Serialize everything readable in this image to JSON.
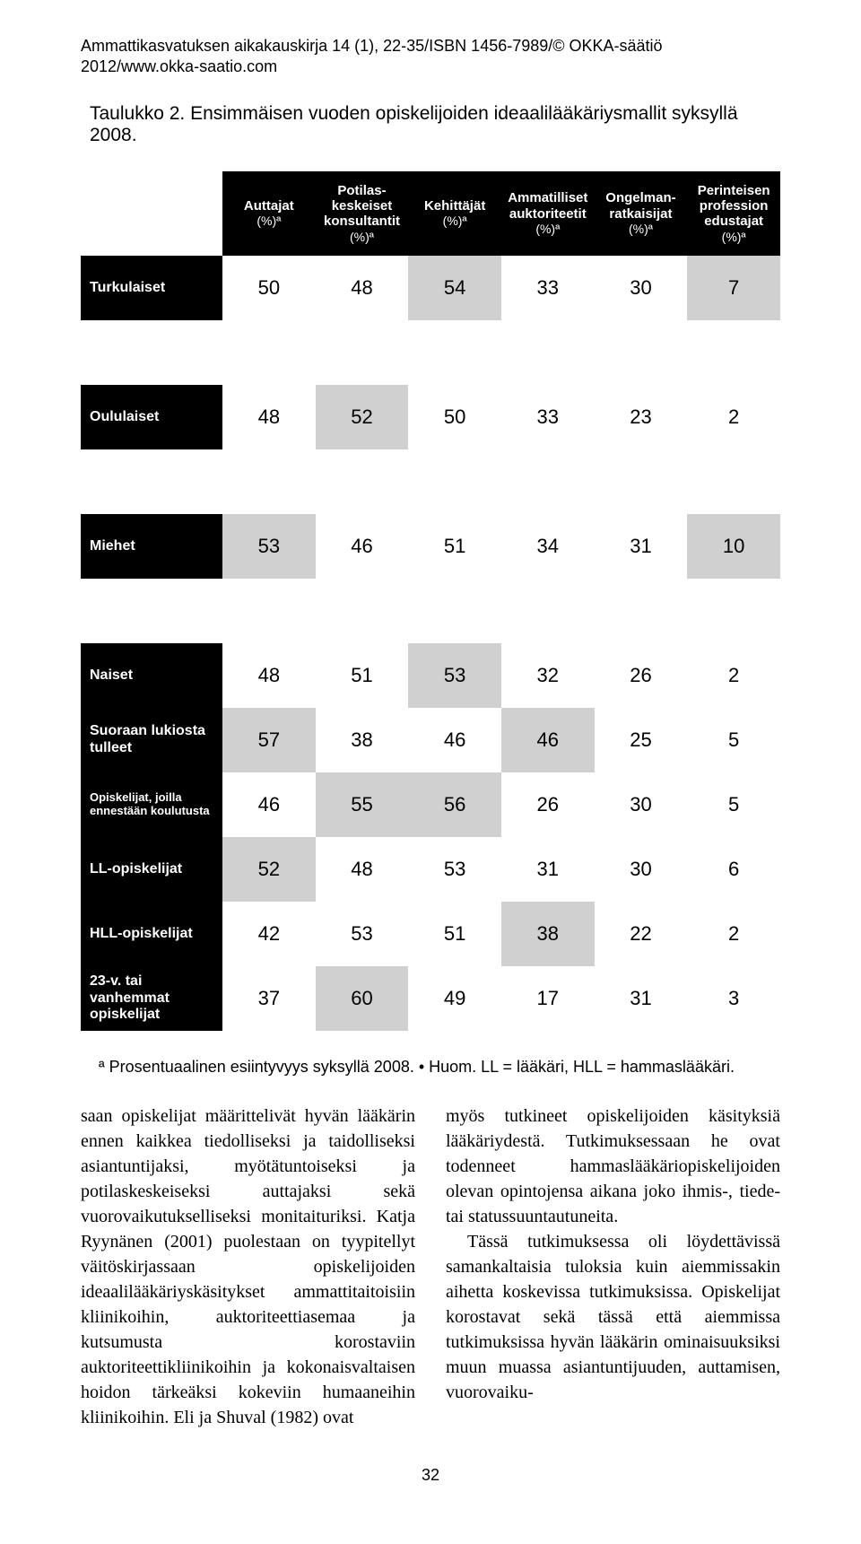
{
  "running_head": "Ammattikasvatuksen aikakauskirja 14 (1), 22-35/ISBN 1456-7989/© OKKA-säätiö 2012/www.okka-saatio.com",
  "table": {
    "type": "table",
    "caption": "Taulukko 2. Ensimmäisen vuoden opiskelijoiden ideaalilääkäriysmallit syksyllä 2008.",
    "col_headers": [
      {
        "label": "Auttajat",
        "sub": "(%)ª"
      },
      {
        "label": "Potilas-keskeiset konsultantit",
        "sub": "(%)ª"
      },
      {
        "label": "Kehittäjät",
        "sub": "(%)ª"
      },
      {
        "label": "Ammatilliset auktoriteetit",
        "sub": "(%)ª"
      },
      {
        "label": "Ongelman-ratkaisijat",
        "sub": "(%)ª"
      },
      {
        "label": "Perinteisen profession edustajat",
        "sub": "(%)ª"
      }
    ],
    "rows": [
      {
        "label": "Turkulaiset",
        "values": [
          50,
          48,
          54,
          33,
          30,
          7
        ],
        "highlight": [
          0,
          0,
          1,
          0,
          0,
          1
        ],
        "spacer_after": true
      },
      {
        "label": "Oululaiset",
        "values": [
          48,
          52,
          50,
          33,
          23,
          2
        ],
        "highlight": [
          0,
          1,
          0,
          0,
          0,
          0
        ],
        "spacer_after": true
      },
      {
        "label": "Miehet",
        "values": [
          53,
          46,
          51,
          34,
          31,
          10
        ],
        "highlight": [
          1,
          0,
          0,
          0,
          0,
          1
        ],
        "spacer_after": true
      },
      {
        "label": "Naiset",
        "values": [
          48,
          51,
          53,
          32,
          26,
          2
        ],
        "highlight": [
          0,
          0,
          1,
          0,
          0,
          0
        ],
        "spacer_after": false
      },
      {
        "label": "Suoraan lukiosta tulleet",
        "values": [
          57,
          38,
          46,
          46,
          25,
          5
        ],
        "highlight": [
          1,
          0,
          0,
          1,
          0,
          0
        ],
        "spacer_after": false
      },
      {
        "label": "Opiskelijat, joilla ennestään koulutusta",
        "values": [
          46,
          55,
          56,
          26,
          30,
          5
        ],
        "highlight": [
          0,
          1,
          1,
          0,
          0,
          0
        ],
        "small_label": true,
        "spacer_after": false
      },
      {
        "label": "LL-opiskelijat",
        "values": [
          52,
          48,
          53,
          31,
          30,
          6
        ],
        "highlight": [
          1,
          0,
          0,
          0,
          0,
          0
        ],
        "spacer_after": false
      },
      {
        "label": "HLL-opiskelijat",
        "values": [
          42,
          53,
          51,
          38,
          22,
          2
        ],
        "highlight": [
          0,
          0,
          0,
          1,
          0,
          0
        ],
        "spacer_after": false
      },
      {
        "label": "23-v. tai vanhemmat opiskelijat",
        "values": [
          37,
          60,
          49,
          17,
          31,
          3
        ],
        "highlight": [
          0,
          1,
          0,
          0,
          0,
          0
        ],
        "spacer_after": false
      }
    ],
    "highlight_color": "#d0d0d0",
    "header_bg": "#000000",
    "header_fg": "#ffffff"
  },
  "footnote": "ª Prosentuaalinen esiintyvyys syksyllä 2008. • Huom. LL = lääkäri, HLL = hammaslääkäri.",
  "body": {
    "left": [
      "saan opiskelijat määrittelivät hyvän lääkärin ennen kaikkea tiedolliseksi ja taidolliseksi asiantuntijaksi, myötätuntoiseksi ja potilaskeskeiseksi auttajaksi sekä vuorovaikutukselliseksi monitaituriksi. Katja Ryynänen (2001) puolestaan on tyypitellyt väitöskirjassaan opiskelijoiden ideaalilääkäriyskäsitykset ammattitaitoisiin kliinikoihin, auktoriteettiasemaa ja kutsumusta korostaviin auktoriteettikliinikoihin ja kokonaisvaltaisen hoidon tärkeäksi kokeviin humaaneihin kliinikoihin. Eli ja Shuval (1982) ovat"
    ],
    "right": [
      "myös tutkineet opiskelijoiden käsityksiä lääkäriydestä. Tutkimuksessaan he ovat todenneet hammaslääkäriopiskelijoiden olevan opintojensa aikana joko ihmis-, tiede- tai statussuuntautuneita.",
      "Tässä tutkimuksessa oli löydettävissä samankaltaisia tuloksia kuin aiemmissakin aihetta koskevissa tutkimuksissa. Opiskelijat korostavat sekä tässä että aiemmissa tutkimuksissa hyvän lääkärin ominaisuuksiksi muun muassa asiantuntijuuden, auttamisen, vuorovaiku-"
    ]
  },
  "page_number": "32"
}
